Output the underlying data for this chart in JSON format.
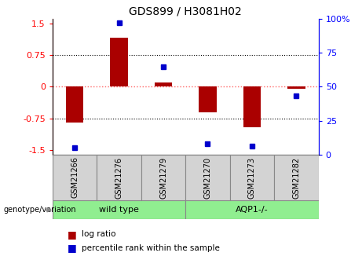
{
  "title": "GDS899 / H3081H02",
  "samples": [
    "GSM21266",
    "GSM21276",
    "GSM21279",
    "GSM21270",
    "GSM21273",
    "GSM21282"
  ],
  "log_ratios": [
    -0.85,
    1.15,
    0.1,
    -0.6,
    -0.95,
    -0.05
  ],
  "percentile_ranks": [
    5,
    97,
    65,
    8,
    6,
    43
  ],
  "bar_color": "#aa0000",
  "dot_color": "#0000cc",
  "ylim_left": [
    -1.6,
    1.6
  ],
  "ylim_right": [
    0,
    100
  ],
  "yticks_left": [
    -1.5,
    -0.75,
    0,
    0.75,
    1.5
  ],
  "yticks_left_labels": [
    "-1.5",
    "-0.75",
    "0",
    "0.75",
    "1.5"
  ],
  "yticks_right": [
    0,
    25,
    50,
    75,
    100
  ],
  "yticks_right_labels": [
    "0",
    "25",
    "50",
    "75",
    "100%"
  ],
  "hline_dotted": [
    -0.75,
    0.75
  ],
  "hline_zero_color": "#ff6666",
  "hline_dotted_color": "#000000",
  "label_log_ratio": "log ratio",
  "label_percentile": "percentile rank within the sample",
  "genotype_label": "genotype/variation",
  "wild_type_label": "wild type",
  "aqp1_label": "AQP1-/-",
  "group_color": "#90ee90",
  "sample_box_color": "#d3d3d3",
  "background_color": "#ffffff",
  "bar_width": 0.4
}
